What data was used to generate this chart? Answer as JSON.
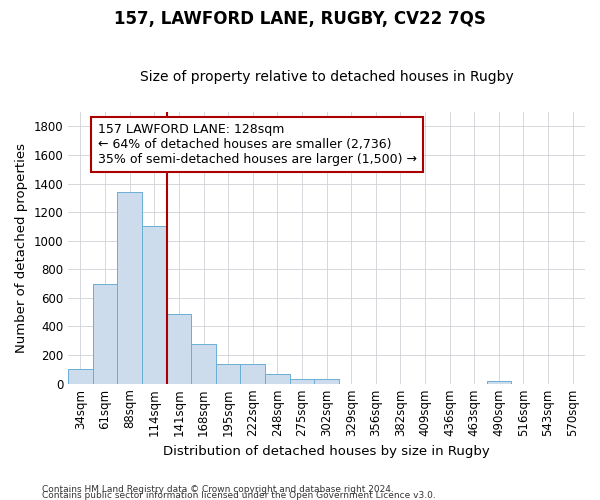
{
  "title": "157, LAWFORD LANE, RUGBY, CV22 7QS",
  "subtitle": "Size of property relative to detached houses in Rugby",
  "xlabel": "Distribution of detached houses by size in Rugby",
  "ylabel": "Number of detached properties",
  "footer_line1": "Contains HM Land Registry data © Crown copyright and database right 2024.",
  "footer_line2": "Contains public sector information licensed under the Open Government Licence v3.0.",
  "categories": [
    "34sqm",
    "61sqm",
    "88sqm",
    "114sqm",
    "141sqm",
    "168sqm",
    "195sqm",
    "222sqm",
    "248sqm",
    "275sqm",
    "302sqm",
    "329sqm",
    "356sqm",
    "382sqm",
    "409sqm",
    "436sqm",
    "463sqm",
    "490sqm",
    "516sqm",
    "543sqm",
    "570sqm"
  ],
  "values": [
    100,
    700,
    1340,
    1100,
    490,
    275,
    140,
    140,
    70,
    35,
    30,
    0,
    0,
    0,
    0,
    0,
    0,
    20,
    0,
    0,
    0
  ],
  "bar_color": "#ccdcec",
  "bar_edge_color": "#6baed6",
  "vline_x": 3.5,
  "vline_color": "#aa0000",
  "annotation_line1": "157 LAWFORD LANE: 128sqm",
  "annotation_line2": "← 64% of detached houses are smaller (2,736)",
  "annotation_line3": "35% of semi-detached houses are larger (1,500) →",
  "ylim": [
    0,
    1900
  ],
  "yticks": [
    0,
    200,
    400,
    600,
    800,
    1000,
    1200,
    1400,
    1600,
    1800
  ],
  "background_color": "#ffffff",
  "plot_bg_color": "#ffffff",
  "grid_color": "#d0d0d8",
  "title_fontsize": 12,
  "subtitle_fontsize": 10,
  "axis_label_fontsize": 9.5,
  "tick_fontsize": 8.5,
  "annotation_fontsize": 9
}
